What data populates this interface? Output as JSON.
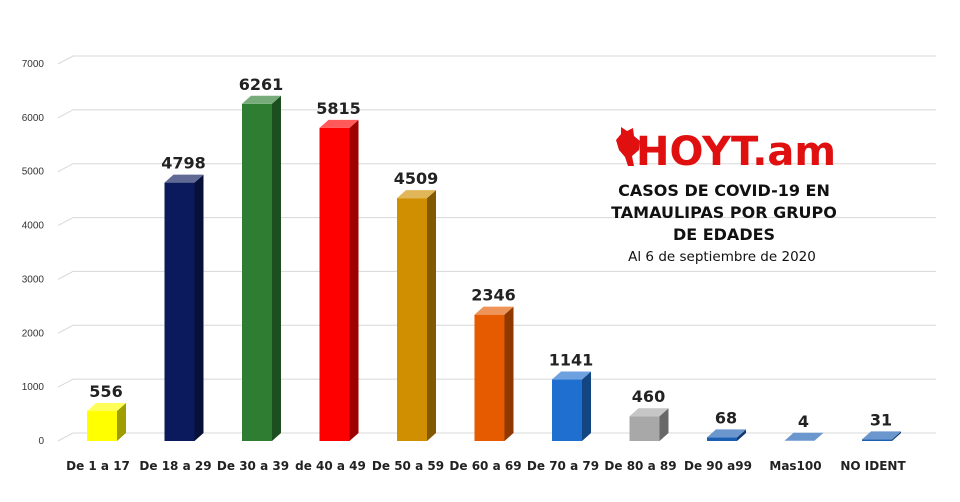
{
  "brand": {
    "logo": "HOYT.am"
  },
  "chart_data": {
    "type": "bar",
    "title_lines": [
      "CASOS DE COVID-19 EN",
      "TAMAULIPAS POR GRUPO",
      "DE EDADES"
    ],
    "subtitle": "Al 6 de septiembre de 2020",
    "xlabel": "",
    "ylabel": "",
    "ylim": [
      0,
      7000
    ],
    "yticks": [
      0,
      1000,
      2000,
      3000,
      4000,
      5000,
      6000,
      7000
    ],
    "grid": true,
    "categories": [
      "De 1 a 17",
      "De 18 a 29",
      "De 30 a 39",
      "de 40 a 49",
      "De 50 a 59",
      "De 60 a 69",
      "De 70 a 79",
      "De 80 a 89",
      "De 90 a99",
      "Mas100",
      "NO IDENT"
    ],
    "values": [
      556,
      4798,
      6261,
      5815,
      4509,
      2346,
      1141,
      460,
      68,
      4,
      31
    ],
    "colors": [
      "#ffff00",
      "#0a1a5c",
      "#2e7d32",
      "#ff0000",
      "#d08f00",
      "#e65a00",
      "#1e6fd0",
      "#a8a8a8",
      "#1b5fb3",
      "#1b5fb3",
      "#1b5fb3"
    ]
  }
}
